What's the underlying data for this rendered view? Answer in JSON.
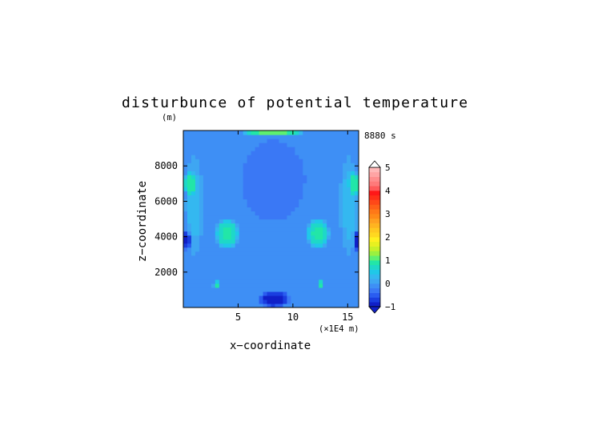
{
  "chart_data": {
    "type": "heatmap",
    "title": "disturbunce of potential temperature",
    "time_label": "8880 s",
    "xlabel": "x−coordinate",
    "ylabel": "z−coordinate",
    "x_unit": "(×1E4 m)",
    "y_unit": "(m)",
    "xlim": [
      0,
      16
    ],
    "ylim": [
      0,
      10000
    ],
    "x_ticks": [
      5,
      10,
      15
    ],
    "y_ticks": [
      2000,
      4000,
      6000,
      8000
    ],
    "x_tick_labels": [
      "5",
      "10",
      "15"
    ],
    "y_tick_labels": [
      "2000",
      "4000",
      "6000",
      "8000"
    ],
    "colorbar": {
      "min": -1,
      "max": 5,
      "labels": [
        "5",
        "4",
        "3",
        "2",
        "1",
        "0",
        "−1"
      ],
      "levels": [
        {
          "from": -1.0,
          "to": -0.8,
          "color": "#1020c8"
        },
        {
          "from": -0.8,
          "to": -0.6,
          "color": "#1a3ee0"
        },
        {
          "from": -0.6,
          "to": -0.4,
          "color": "#2a5cf0"
        },
        {
          "from": -0.4,
          "to": -0.2,
          "color": "#3a78f5"
        },
        {
          "from": -0.2,
          "to": 0.0,
          "color": "#3e8ff5"
        },
        {
          "from": 0.0,
          "to": 0.2,
          "color": "#3ea6f2"
        },
        {
          "from": 0.2,
          "to": 0.4,
          "color": "#34b8f0"
        },
        {
          "from": 0.4,
          "to": 0.6,
          "color": "#20c8e8"
        },
        {
          "from": 0.6,
          "to": 0.8,
          "color": "#1ed8c8"
        },
        {
          "from": 0.8,
          "to": 1.0,
          "color": "#22e6a8"
        },
        {
          "from": 1.0,
          "to": 1.2,
          "color": "#5ef070"
        },
        {
          "from": 1.2,
          "to": 1.4,
          "color": "#9af040"
        },
        {
          "from": 1.4,
          "to": 1.6,
          "color": "#c8f028"
        },
        {
          "from": 1.6,
          "to": 1.8,
          "color": "#e8f020"
        },
        {
          "from": 1.8,
          "to": 2.0,
          "color": "#fff020"
        },
        {
          "from": 2.0,
          "to": 2.2,
          "color": "#ffd820"
        },
        {
          "from": 2.2,
          "to": 2.4,
          "color": "#ffc820"
        },
        {
          "from": 2.4,
          "to": 2.6,
          "color": "#ffb420"
        },
        {
          "from": 2.6,
          "to": 2.8,
          "color": "#ffa020"
        },
        {
          "from": 2.8,
          "to": 3.0,
          "color": "#ff8a18"
        },
        {
          "from": 3.0,
          "to": 3.2,
          "color": "#ff7818"
        },
        {
          "from": 3.2,
          "to": 3.4,
          "color": "#ff6018"
        },
        {
          "from": 3.4,
          "to": 3.6,
          "color": "#ff4818"
        },
        {
          "from": 3.6,
          "to": 3.8,
          "color": "#ff3018"
        },
        {
          "from": 3.8,
          "to": 4.0,
          "color": "#ff1818"
        },
        {
          "from": 4.0,
          "to": 4.2,
          "color": "#ff5a5a"
        },
        {
          "from": 4.2,
          "to": 4.4,
          "color": "#ff7a7a"
        },
        {
          "from": 4.4,
          "to": 4.6,
          "color": "#ff8e8e"
        },
        {
          "from": 4.6,
          "to": 4.8,
          "color": "#ffa4a4"
        },
        {
          "from": 4.8,
          "to": 5.0,
          "color": "#ffb8b8"
        }
      ],
      "under_color": "#1020c8",
      "over_color": "#ffffff"
    },
    "field": {
      "background_value": -0.1,
      "features": [
        {
          "name": "upper-plume",
          "x": 8.2,
          "z": 7200,
          "rx": 3.3,
          "rz": 2600,
          "value": -0.35
        },
        {
          "name": "left-side-band",
          "x": 1.0,
          "z": 5800,
          "rx": 0.9,
          "rz": 3000,
          "value": 0.25
        },
        {
          "name": "right-side-band",
          "x": 15.1,
          "z": 5800,
          "rx": 0.9,
          "rz": 3000,
          "value": 0.25
        },
        {
          "name": "left-high-patch",
          "x": 0.6,
          "z": 7000,
          "rx": 0.6,
          "rz": 700,
          "value": 0.95
        },
        {
          "name": "right-high-patch",
          "x": 15.6,
          "z": 7000,
          "rx": 0.6,
          "rz": 700,
          "value": 0.95
        },
        {
          "name": "left-mid-lobe",
          "x": 4.0,
          "z": 4200,
          "rx": 1.1,
          "rz": 900,
          "value": 0.85
        },
        {
          "name": "right-mid-lobe",
          "x": 12.3,
          "z": 4200,
          "rx": 1.1,
          "rz": 900,
          "value": 0.85
        },
        {
          "name": "left-low-dot",
          "x": 3.0,
          "z": 1300,
          "rx": 0.3,
          "rz": 250,
          "value": 0.9
        },
        {
          "name": "right-low-dot",
          "x": 12.6,
          "z": 1300,
          "rx": 0.3,
          "rz": 250,
          "value": 0.9
        },
        {
          "name": "left-edge-low",
          "x": 0.3,
          "z": 3800,
          "rx": 0.4,
          "rz": 600,
          "value": -0.85
        },
        {
          "name": "right-edge-low",
          "x": 15.9,
          "z": 3800,
          "rx": 0.4,
          "rz": 600,
          "value": -0.85
        },
        {
          "name": "bottom-center-low",
          "x": 8.3,
          "z": 500,
          "rx": 1.5,
          "rz": 500,
          "value": -0.9
        },
        {
          "name": "top-edge-high",
          "x": 8.2,
          "z": 9950,
          "rx": 3.0,
          "rz": 250,
          "value": 1.05
        }
      ]
    }
  }
}
